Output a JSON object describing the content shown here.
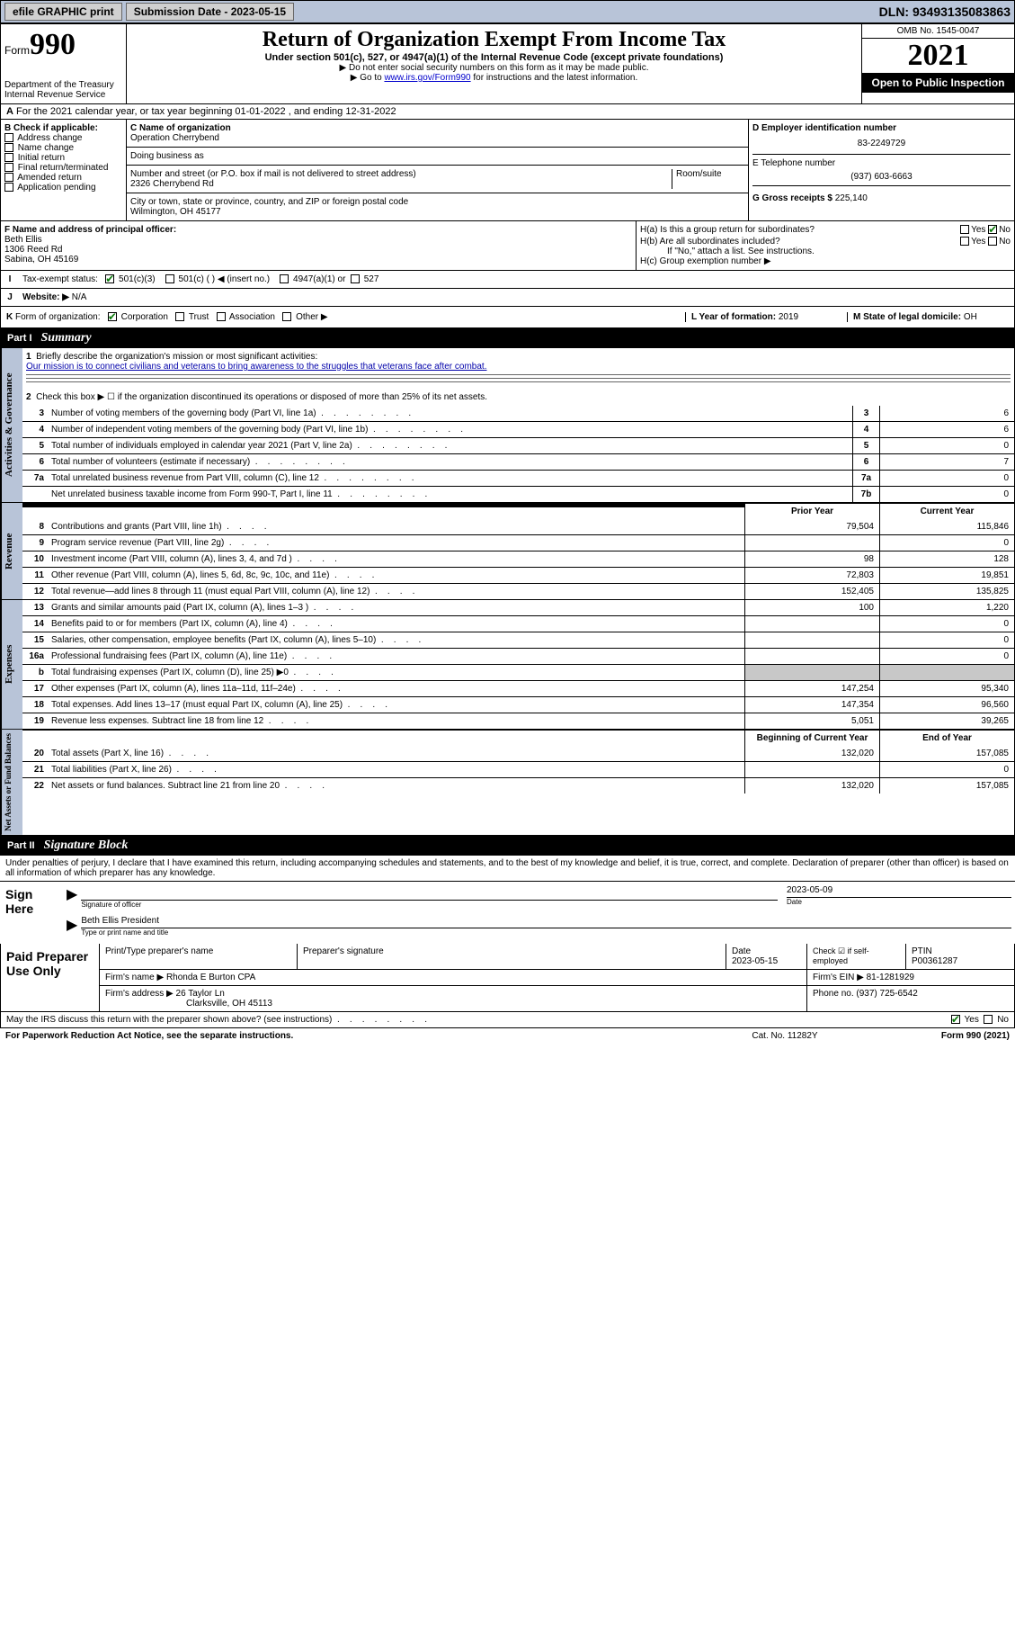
{
  "topbar": {
    "efile": "efile GRAPHIC print",
    "submission_label": "Submission Date - 2023-05-15",
    "dln": "DLN: 93493135083863"
  },
  "header": {
    "form_word": "Form",
    "form_num": "990",
    "dept": "Department of the Treasury",
    "irs": "Internal Revenue Service",
    "title": "Return of Organization Exempt From Income Tax",
    "subtitle": "Under section 501(c), 527, or 4947(a)(1) of the Internal Revenue Code (except private foundations)",
    "instr1": "▶ Do not enter social security numbers on this form as it may be made public.",
    "instr2_pre": "▶ Go to ",
    "instr2_link": "www.irs.gov/Form990",
    "instr2_post": " for instructions and the latest information.",
    "omb": "OMB No. 1545-0047",
    "year": "2021",
    "open": "Open to Public Inspection"
  },
  "row_a": {
    "label": "A",
    "text": "For the 2021 calendar year, or tax year beginning 01-01-2022   , and ending 12-31-2022"
  },
  "col_b": {
    "hdr": "B Check if applicable:",
    "opts": [
      "Address change",
      "Name change",
      "Initial return",
      "Final return/terminated",
      "Amended return",
      "Application pending"
    ]
  },
  "col_c": {
    "name_lbl": "C Name of organization",
    "name": "Operation Cherrybend",
    "dba_lbl": "Doing business as",
    "addr_lbl": "Number and street (or P.O. box if mail is not delivered to street address)",
    "room_lbl": "Room/suite",
    "addr": "2326 Cherrybend Rd",
    "city_lbl": "City or town, state or province, country, and ZIP or foreign postal code",
    "city": "Wilmington, OH  45177"
  },
  "col_de": {
    "d_lbl": "D Employer identification number",
    "d_val": "83-2249729",
    "e_lbl": "E Telephone number",
    "e_val": "(937) 603-6663",
    "g_lbl": "G Gross receipts $",
    "g_val": "225,140"
  },
  "col_f": {
    "lbl": "F Name and address of principal officer:",
    "name": "Beth Ellis",
    "addr1": "1306 Reed Rd",
    "addr2": "Sabina, OH  45169"
  },
  "col_h": {
    "ha_lbl": "H(a)  Is this a group return for subordinates?",
    "hb_lbl": "H(b)  Are all subordinates included?",
    "hb_note": "If \"No,\" attach a list. See instructions.",
    "hc_lbl": "H(c)  Group exemption number ▶",
    "yes": "Yes",
    "no": "No"
  },
  "row_i": {
    "lbl": "I",
    "text": "Tax-exempt status:",
    "opts": [
      "501(c)(3)",
      "501(c) (  ) ◀ (insert no.)",
      "4947(a)(1) or",
      "527"
    ]
  },
  "row_j": {
    "lbl": "J",
    "text": "Website: ▶",
    "val": "N/A"
  },
  "row_k": {
    "lbl": "K",
    "text": "Form of organization:",
    "opts": [
      "Corporation",
      "Trust",
      "Association",
      "Other ▶"
    ],
    "l_lbl": "L Year of formation:",
    "l_val": "2019",
    "m_lbl": "M State of legal domicile:",
    "m_val": "OH"
  },
  "part1": {
    "num": "Part I",
    "title": "Summary",
    "line1_lbl": "1",
    "line1_text": "Briefly describe the organization's mission or most significant activities:",
    "line1_val": "Our mission is to connect civilians and veterans to bring awareness to the struggles that veterans face after combat.",
    "line2_lbl": "2",
    "line2_text": "Check this box ▶ ☐  if the organization discontinued its operations or disposed of more than 25% of its net assets.",
    "gov_lines": [
      {
        "n": "3",
        "t": "Number of voting members of the governing body (Part VI, line 1a)",
        "box": "3",
        "v": "6"
      },
      {
        "n": "4",
        "t": "Number of independent voting members of the governing body (Part VI, line 1b)",
        "box": "4",
        "v": "6"
      },
      {
        "n": "5",
        "t": "Total number of individuals employed in calendar year 2021 (Part V, line 2a)",
        "box": "5",
        "v": "0"
      },
      {
        "n": "6",
        "t": "Total number of volunteers (estimate if necessary)",
        "box": "6",
        "v": "7"
      },
      {
        "n": "7a",
        "t": "Total unrelated business revenue from Part VIII, column (C), line 12",
        "box": "7a",
        "v": "0"
      },
      {
        "n": "",
        "t": "Net unrelated business taxable income from Form 990-T, Part I, line 11",
        "box": "7b",
        "v": "0"
      }
    ],
    "rev_hdr_prior": "Prior Year",
    "rev_hdr_curr": "Current Year",
    "rev_lines": [
      {
        "n": "8",
        "t": "Contributions and grants (Part VIII, line 1h)",
        "p": "79,504",
        "c": "115,846"
      },
      {
        "n": "9",
        "t": "Program service revenue (Part VIII, line 2g)",
        "p": "",
        "c": "0"
      },
      {
        "n": "10",
        "t": "Investment income (Part VIII, column (A), lines 3, 4, and 7d )",
        "p": "98",
        "c": "128"
      },
      {
        "n": "11",
        "t": "Other revenue (Part VIII, column (A), lines 5, 6d, 8c, 9c, 10c, and 11e)",
        "p": "72,803",
        "c": "19,851"
      },
      {
        "n": "12",
        "t": "Total revenue—add lines 8 through 11 (must equal Part VIII, column (A), line 12)",
        "p": "152,405",
        "c": "135,825"
      }
    ],
    "exp_lines": [
      {
        "n": "13",
        "t": "Grants and similar amounts paid (Part IX, column (A), lines 1–3 )",
        "p": "100",
        "c": "1,220"
      },
      {
        "n": "14",
        "t": "Benefits paid to or for members (Part IX, column (A), line 4)",
        "p": "",
        "c": "0"
      },
      {
        "n": "15",
        "t": "Salaries, other compensation, employee benefits (Part IX, column (A), lines 5–10)",
        "p": "",
        "c": "0"
      },
      {
        "n": "16a",
        "t": "Professional fundraising fees (Part IX, column (A), line 11e)",
        "p": "",
        "c": "0"
      },
      {
        "n": "b",
        "t": "Total fundraising expenses (Part IX, column (D), line 25) ▶0",
        "p": "shaded",
        "c": "shaded"
      },
      {
        "n": "17",
        "t": "Other expenses (Part IX, column (A), lines 11a–11d, 11f–24e)",
        "p": "147,254",
        "c": "95,340"
      },
      {
        "n": "18",
        "t": "Total expenses. Add lines 13–17 (must equal Part IX, column (A), line 25)",
        "p": "147,354",
        "c": "96,560"
      },
      {
        "n": "19",
        "t": "Revenue less expenses. Subtract line 18 from line 12",
        "p": "5,051",
        "c": "39,265"
      }
    ],
    "na_hdr_begin": "Beginning of Current Year",
    "na_hdr_end": "End of Year",
    "na_lines": [
      {
        "n": "20",
        "t": "Total assets (Part X, line 16)",
        "p": "132,020",
        "c": "157,085"
      },
      {
        "n": "21",
        "t": "Total liabilities (Part X, line 26)",
        "p": "",
        "c": "0"
      },
      {
        "n": "22",
        "t": "Net assets or fund balances. Subtract line 21 from line 20",
        "p": "132,020",
        "c": "157,085"
      }
    ],
    "vlabels": {
      "gov": "Activities & Governance",
      "rev": "Revenue",
      "exp": "Expenses",
      "na": "Net Assets or Fund Balances"
    }
  },
  "part2": {
    "num": "Part II",
    "title": "Signature Block",
    "decl": "Under penalties of perjury, I declare that I have examined this return, including accompanying schedules and statements, and to the best of my knowledge and belief, it is true, correct, and complete. Declaration of preparer (other than officer) is based on all information of which preparer has any knowledge.",
    "sign_here": "Sign Here",
    "sig_of_officer": "Signature of officer",
    "sig_date": "2023-05-09",
    "date_lbl": "Date",
    "officer_name": "Beth Ellis  President",
    "type_name_lbl": "Type or print name and title",
    "paid_prep": "Paid Preparer Use Only",
    "prep_name_lbl": "Print/Type preparer's name",
    "prep_sig_lbl": "Preparer's signature",
    "prep_date_lbl": "Date",
    "prep_date": "2023-05-15",
    "check_if": "Check ☑ if self-employed",
    "ptin_lbl": "PTIN",
    "ptin": "P00361287",
    "firm_name_lbl": "Firm's name    ▶",
    "firm_name": "Rhonda E Burton CPA",
    "firm_ein_lbl": "Firm's EIN ▶",
    "firm_ein": "81-1281929",
    "firm_addr_lbl": "Firm's address ▶",
    "firm_addr1": "26 Taylor Ln",
    "firm_addr2": "Clarksville, OH  45113",
    "phone_lbl": "Phone no.",
    "phone": "(937) 725-6542",
    "irs_discuss": "May the IRS discuss this return with the preparer shown above? (see instructions)",
    "yes": "Yes",
    "no": "No"
  },
  "footer": {
    "pra": "For Paperwork Reduction Act Notice, see the separate instructions.",
    "cat": "Cat. No. 11282Y",
    "form": "Form 990 (2021)"
  }
}
